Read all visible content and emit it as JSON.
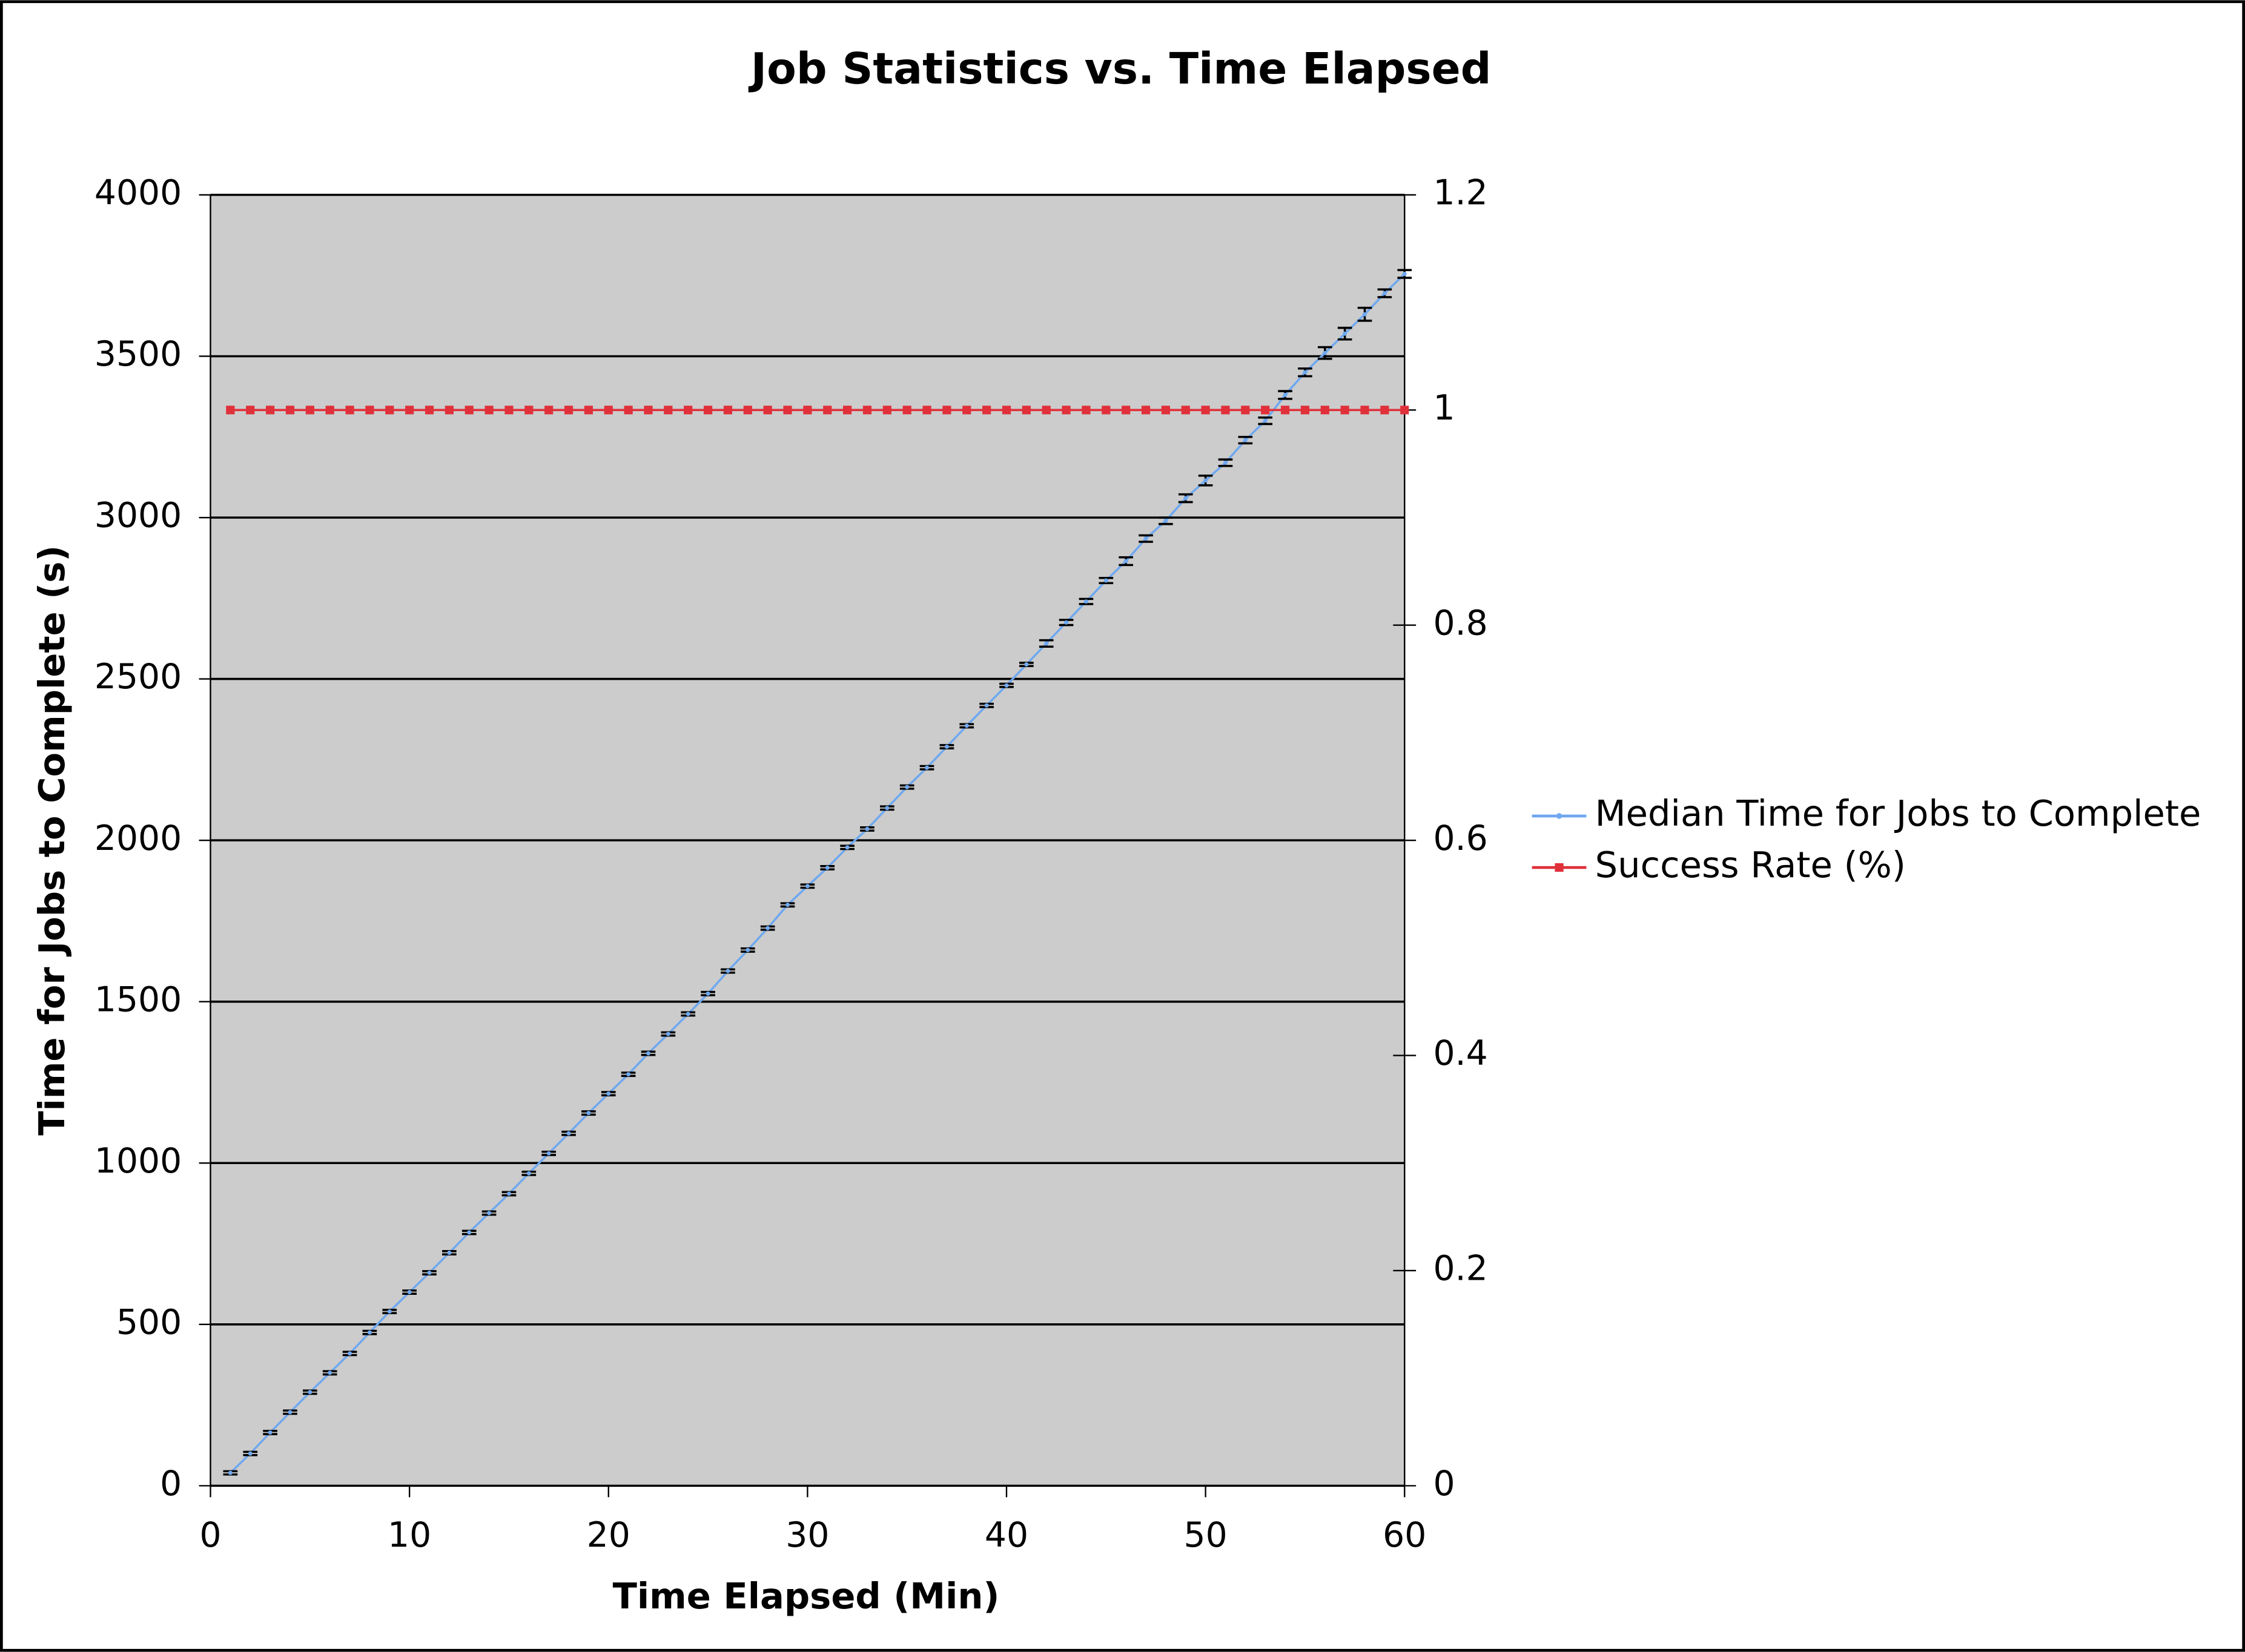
{
  "chart_data": {
    "type": "line",
    "title": "Job Statistics vs. Time Elapsed",
    "x_label": "Time Elapsed (Min)",
    "y_label": "Time for Jobs  to Complete (s)",
    "x": [
      1,
      2,
      3,
      4,
      5,
      6,
      7,
      8,
      9,
      10,
      11,
      12,
      13,
      14,
      15,
      16,
      17,
      18,
      19,
      20,
      21,
      22,
      23,
      24,
      25,
      26,
      27,
      28,
      29,
      30,
      31,
      32,
      33,
      34,
      35,
      36,
      37,
      38,
      39,
      40,
      41,
      42,
      43,
      44,
      45,
      46,
      47,
      48,
      49,
      50,
      51,
      52,
      53,
      54,
      55,
      56,
      57,
      58,
      59,
      60
    ],
    "series": [
      {
        "name": "Median Time for Jobs to Complete",
        "color": "#6fa8f0",
        "values": [
          40,
          100,
          165,
          228,
          290,
          350,
          410,
          475,
          540,
          600,
          660,
          722,
          785,
          845,
          905,
          968,
          1030,
          1092,
          1155,
          1215,
          1275,
          1340,
          1400,
          1462,
          1525,
          1595,
          1660,
          1728,
          1800,
          1858,
          1915,
          1978,
          2035,
          2100,
          2165,
          2225,
          2290,
          2355,
          2418,
          2480,
          2545,
          2610,
          2675,
          2740,
          2805,
          2865,
          2935,
          2990,
          3060,
          3115,
          3170,
          3240,
          3300,
          3380,
          3450,
          3510,
          3570,
          3630,
          3695,
          3755
        ],
        "errors": [
          5,
          5,
          5,
          5,
          5,
          5,
          5,
          5,
          5,
          5,
          5,
          5,
          5,
          5,
          5,
          5,
          5,
          5,
          5,
          5,
          5,
          5,
          5,
          5,
          5,
          5,
          5,
          5,
          5,
          5,
          5,
          5,
          5,
          5,
          5,
          5,
          5,
          5,
          5,
          5,
          5,
          10,
          8,
          8,
          8,
          12,
          10,
          10,
          12,
          15,
          10,
          10,
          10,
          12,
          12,
          18,
          18,
          20,
          12,
          12
        ],
        "error_color": "#000000"
      },
      {
        "name": "Success Rate (%)",
        "color": "#e0303a",
        "axis": "y2",
        "values": [
          1,
          1,
          1,
          1,
          1,
          1,
          1,
          1,
          1,
          1,
          1,
          1,
          1,
          1,
          1,
          1,
          1,
          1,
          1,
          1,
          1,
          1,
          1,
          1,
          1,
          1,
          1,
          1,
          1,
          1,
          1,
          1,
          1,
          1,
          1,
          1,
          1,
          1,
          1,
          1,
          1,
          1,
          1,
          1,
          1,
          1,
          1,
          1,
          1,
          1,
          1,
          1,
          1,
          1,
          1,
          1,
          1,
          1,
          1,
          1
        ]
      }
    ],
    "xlim": [
      0,
      60
    ],
    "xticks": [
      0,
      10,
      20,
      30,
      40,
      50,
      60
    ],
    "ylim": [
      0,
      4000
    ],
    "yticks": [
      0,
      500,
      1000,
      1500,
      2000,
      2500,
      3000,
      3500,
      4000
    ],
    "y2lim": [
      0,
      1.2
    ],
    "y2ticks": [
      0,
      0.2,
      0.4,
      0.6,
      0.8,
      1,
      1.2
    ],
    "grid": true,
    "legend": "right",
    "background": "#cccccc"
  }
}
